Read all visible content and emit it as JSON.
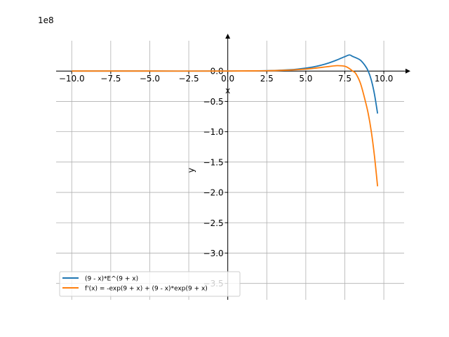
{
  "chart_data": {
    "type": "line",
    "exponent_label": "1e8",
    "xlabel": "x",
    "ylabel": "y",
    "xlim": [
      -11.0,
      11.3
    ],
    "ylim": [
      -3.77,
      0.5
    ],
    "grid": true,
    "legend_position": "lower-left",
    "x_ticks": [
      -10.0,
      -7.5,
      -5.0,
      -2.5,
      0.0,
      2.5,
      5.0,
      7.5,
      10.0
    ],
    "x_tick_labels": [
      "−10.0",
      "−7.5",
      "−5.0",
      "−2.5",
      "0.0",
      "2.5",
      "5.0",
      "7.5",
      "10.0"
    ],
    "y_ticks": [
      0.0,
      -0.5,
      -1.0,
      -1.5,
      -2.0,
      -2.5,
      -3.0,
      -3.5
    ],
    "y_tick_labels": [
      "0.0",
      "−0.5",
      "−1.0",
      "−1.5",
      "−2.0",
      "−2.5",
      "−3.0",
      "−3.5"
    ],
    "series": [
      {
        "name": "(9 - x)*E^(9 + x)",
        "color": "#1f77b4",
        "x": [
          -10.0,
          -5.0,
          0.0,
          2.0,
          3.0,
          4.0,
          4.5,
          5.0,
          5.5,
          6.0,
          6.5,
          7.0,
          7.5,
          7.8,
          8.0,
          8.2,
          8.5,
          8.8,
          9.0,
          9.2,
          9.4,
          9.6
        ],
        "y": [
          0.0,
          0.0,
          0.0001,
          0.0042,
          0.0098,
          0.0221,
          0.0328,
          0.048,
          0.0691,
          0.0979,
          0.1358,
          0.1832,
          0.2379,
          0.2655,
          0.2415,
          0.22,
          0.18,
          0.09,
          0.0,
          -0.15,
          -0.38,
          -0.7
        ]
      },
      {
        "name": "f'(x) = -exp(9 + x) + (9 - x)*exp(9 + x)",
        "color": "#ff7f0e",
        "x": [
          -10.0,
          -5.0,
          0.0,
          2.0,
          3.0,
          4.0,
          4.5,
          5.0,
          5.5,
          6.0,
          6.5,
          7.0,
          7.5,
          7.8,
          8.0,
          8.2,
          8.5,
          8.8,
          9.0,
          9.2,
          9.4,
          9.6
        ],
        "y": [
          0.0,
          0.0,
          0.0001,
          0.0036,
          0.0077,
          0.0166,
          0.0237,
          0.0329,
          0.0452,
          0.0595,
          0.0756,
          0.0894,
          0.0793,
          0.04,
          0.0,
          -0.04,
          -0.2,
          -0.48,
          -0.7,
          -1.0,
          -1.4,
          -1.9
        ]
      }
    ]
  }
}
